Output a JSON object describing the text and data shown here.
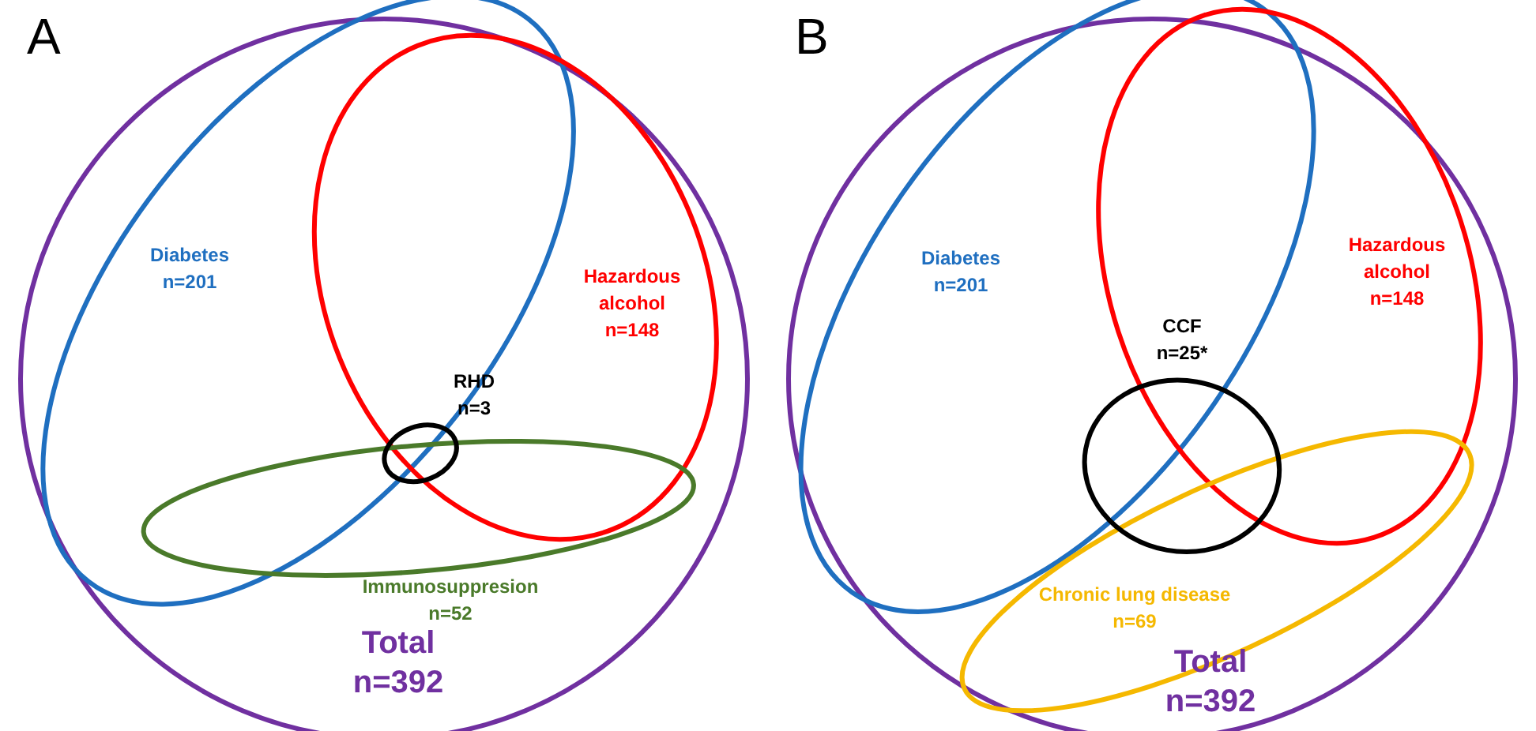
{
  "chart_data": [
    {
      "type": "other",
      "title": "A",
      "categories": [
        "Total",
        "Diabetes",
        "Hazardous alcohol",
        "Immunosuppresion",
        "RHD"
      ],
      "values": [
        392,
        201,
        148,
        52,
        3
      ],
      "value_labels": [
        "n=392",
        "n=201",
        "n=148",
        "n=52",
        "n=3"
      ],
      "colors": [
        "#7030a0",
        "#1f6fc0",
        "#ff0000",
        "#4a7a2a",
        "#000000"
      ]
    },
    {
      "type": "other",
      "title": "B",
      "categories": [
        "Total",
        "Diabetes",
        "Hazardous alcohol",
        "Chronic lung disease",
        "CCF"
      ],
      "values": [
        392,
        201,
        148,
        69,
        25
      ],
      "value_labels": [
        "n=392",
        "n=201",
        "n=148",
        "n=69",
        "n=25*"
      ],
      "colors": [
        "#7030a0",
        "#1f6fc0",
        "#ff0000",
        "#f5b800",
        "#000000"
      ]
    }
  ]
}
